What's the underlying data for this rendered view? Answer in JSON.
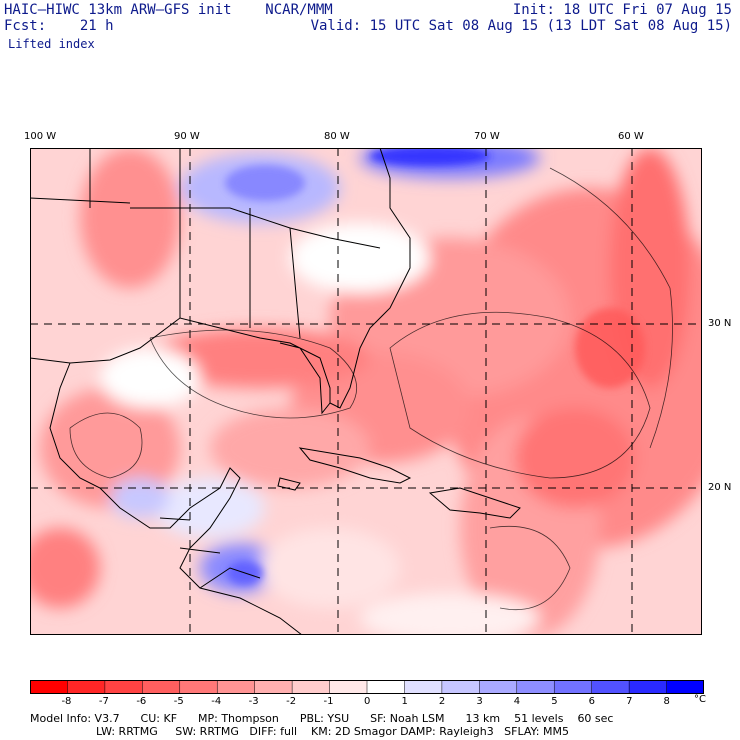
{
  "header": {
    "title": "HAIC–HIWC 13km ARW–GFS init    NCAR/MMM",
    "init": "Init: 18 UTC Fri 07 Aug 15",
    "fcst": "Fcst:    21 h",
    "valid": "Valid: 15 UTC Sat 08 Aug 15 (13 LDT Sat 08 Aug 15)",
    "field": "Lifted index"
  },
  "map": {
    "lon_labels": [
      "100 W",
      "90 W",
      "80 W",
      "70 W",
      "60 W"
    ],
    "lat_labels": [
      "30 N",
      "20 N"
    ],
    "palette_neg": "#ff0000",
    "palette_pos": "#0000ff"
  },
  "colorbar": {
    "ticks": [
      "-8",
      "-7",
      "-6",
      "-5",
      "-4",
      "-3",
      "-2",
      "-1",
      "0",
      "1",
      "2",
      "3",
      "4",
      "5",
      "6",
      "7",
      "8"
    ],
    "unit": "°C",
    "colors": [
      "#ff0000",
      "#ff2626",
      "#ff4343",
      "#ff5f5f",
      "#ff7878",
      "#ff9494",
      "#ffb0b0",
      "#ffcccc",
      "#ffe8e8",
      "#ffffff",
      "#e0e0ff",
      "#c6c6ff",
      "#aaaaff",
      "#8e8eff",
      "#7272ff",
      "#5252ff",
      "#2a2aff",
      "#0000ff"
    ]
  },
  "model_info": {
    "line1": "Model Info: V3.7      CU: KF      MP: Thompson      PBL: YSU      SF: Noah LSM      13 km    51 levels    60 sec",
    "line2": "LW: RRTMG     SW: RRTMG   DIFF: full    KM: 2D Smagor DAMP: Rayleigh3   SFLAY: MM5"
  }
}
